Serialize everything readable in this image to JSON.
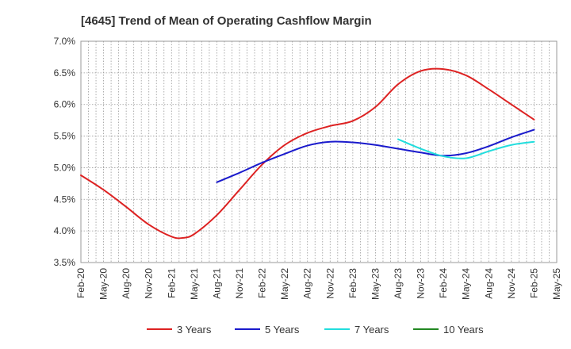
{
  "chart_data": {
    "type": "line",
    "title": "[4645]  Trend of Mean of Operating Cashflow Margin",
    "xlabel": "",
    "ylabel": "",
    "ylim": [
      3.5,
      7.0
    ],
    "y_ticks": [
      "3.5%",
      "4.0%",
      "4.5%",
      "5.0%",
      "5.5%",
      "6.0%",
      "6.5%",
      "7.0%"
    ],
    "y_tick_values": [
      3.5,
      4.0,
      4.5,
      5.0,
      5.5,
      6.0,
      6.5,
      7.0
    ],
    "x_tick_labels": [
      "Feb-20",
      "May-20",
      "Aug-20",
      "Nov-20",
      "Feb-21",
      "May-21",
      "Aug-21",
      "Nov-21",
      "Feb-22",
      "May-22",
      "Aug-22",
      "Nov-22",
      "Feb-23",
      "May-23",
      "Aug-23",
      "Nov-23",
      "Feb-24",
      "May-24",
      "Aug-24",
      "Nov-24",
      "Feb-25",
      "May-25"
    ],
    "grid": true,
    "legend_position": "bottom",
    "series": [
      {
        "name": "3 Years",
        "color": "#dd2222",
        "x": [
          0,
          1,
          2,
          3,
          4,
          4.5,
          5,
          6,
          7,
          8,
          9,
          10,
          11,
          12,
          13,
          14,
          15,
          16,
          17,
          18,
          19,
          20
        ],
        "values": [
          4.88,
          4.65,
          4.38,
          4.1,
          3.91,
          3.89,
          3.95,
          4.25,
          4.65,
          5.05,
          5.36,
          5.55,
          5.66,
          5.74,
          5.96,
          6.32,
          6.53,
          6.56,
          6.46,
          6.24,
          6.0,
          5.76
        ]
      },
      {
        "name": "5 Years",
        "color": "#1a1acc",
        "x": [
          6,
          7,
          8,
          9,
          10,
          11,
          12,
          13,
          14,
          15,
          16,
          17,
          18,
          19,
          20
        ],
        "values": [
          4.77,
          4.92,
          5.08,
          5.22,
          5.35,
          5.41,
          5.4,
          5.36,
          5.3,
          5.24,
          5.19,
          5.23,
          5.34,
          5.48,
          5.6
        ]
      },
      {
        "name": "7 Years",
        "color": "#22dddd",
        "x": [
          14,
          15,
          16,
          17,
          18,
          19,
          20
        ],
        "values": [
          5.45,
          5.3,
          5.18,
          5.15,
          5.26,
          5.36,
          5.41
        ]
      },
      {
        "name": "10 Years",
        "color": "#228822",
        "x": [],
        "values": []
      }
    ]
  }
}
